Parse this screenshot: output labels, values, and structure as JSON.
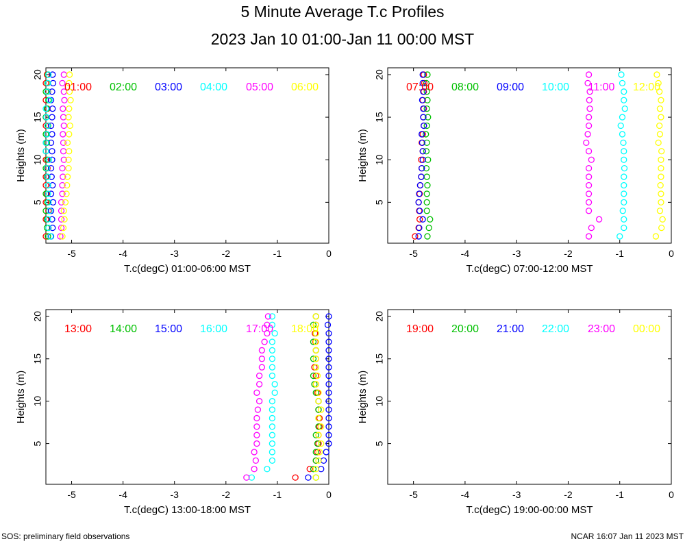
{
  "header": {
    "title": "5 Minute Average T.c Profiles",
    "subtitle": "2023 Jan 10 01:00-Jan 11 00:00 MST"
  },
  "footer": {
    "left": "SOS: preliminary field observations",
    "right": "NCAR 16:07 Jan 11 2023 MST"
  },
  "colors": [
    "#ff0000",
    "#00c000",
    "#0000ff",
    "#00ffff",
    "#ff00ff",
    "#ffff00"
  ],
  "chart_data": [
    {
      "type": "scatter",
      "xlabel": "T.c(degC) 01:00-06:00 MST",
      "ylabel": "Heights (m)",
      "xlim": [
        -5.5,
        0
      ],
      "ylim": [
        0.2,
        20.8
      ],
      "xticks": [
        "-5",
        "-4",
        "-3",
        "-2",
        "-1",
        "0"
      ],
      "yticks": [
        "5",
        "10",
        "15",
        "20"
      ],
      "series": [
        {
          "name": "01:00",
          "x": [
            -5.5,
            -5.45,
            -5.5,
            -5.45,
            -5.5,
            -5.48,
            -5.5,
            -5.5,
            -5.47,
            -5.5,
            -5.5,
            -5.5,
            -5.48,
            -5.5,
            -5.5,
            -5.47,
            -5.5,
            -5.46,
            -5.5,
            -5.48
          ]
        },
        {
          "name": "02:00",
          "x": [
            -5.46,
            -5.48,
            -5.48,
            -5.5,
            -5.47,
            -5.5,
            -5.46,
            -5.48,
            -5.5,
            -5.47,
            -5.5,
            -5.48,
            -5.5,
            -5.46,
            -5.5,
            -5.48,
            -5.45,
            -5.5,
            -5.47,
            -5.46
          ]
        },
        {
          "name": "03:00",
          "x": [
            -5.4,
            -5.37,
            -5.38,
            -5.4,
            -5.36,
            -5.4,
            -5.37,
            -5.39,
            -5.4,
            -5.38,
            -5.38,
            -5.4,
            -5.38,
            -5.4,
            -5.38,
            -5.37,
            -5.4,
            -5.38,
            -5.36,
            -5.37
          ]
        },
        {
          "name": "04:00",
          "x": [
            -5.41,
            -5.45,
            -5.46,
            -5.43,
            -5.45,
            -5.46,
            -5.46,
            -5.47,
            -5.48,
            -5.44,
            -5.5,
            -5.5,
            -5.48,
            -5.47,
            -5.49,
            -5.5,
            -5.43,
            -5.47,
            -5.46,
            -5.45
          ]
        },
        {
          "name": "05:00",
          "x": [
            -5.22,
            -5.2,
            -5.2,
            -5.2,
            -5.2,
            -5.18,
            -5.18,
            -5.17,
            -5.18,
            -5.15,
            -5.16,
            -5.16,
            -5.17,
            -5.15,
            -5.16,
            -5.17,
            -5.14,
            -5.15,
            -5.18,
            -5.15
          ]
        },
        {
          "name": "06:00",
          "x": [
            -5.18,
            -5.16,
            -5.14,
            -5.15,
            -5.12,
            -5.1,
            -5.09,
            -5.08,
            -5.06,
            -5.06,
            -5.05,
            -5.08,
            -5.05,
            -5.03,
            -5.06,
            -5.05,
            -5.02,
            -5.04,
            -5.05,
            -5.04
          ]
        }
      ]
    },
    {
      "type": "scatter",
      "xlabel": "T.c(degC) 07:00-12:00 MST",
      "ylabel": "Heights (m)",
      "xlim": [
        -5.5,
        0
      ],
      "ylim": [
        0.2,
        20.8
      ],
      "xticks": [
        "-5",
        "-4",
        "-3",
        "-2",
        "-1",
        "0"
      ],
      "yticks": [
        "5",
        "10",
        "15",
        "20"
      ],
      "series": [
        {
          "name": "07:00",
          "x": [
            -4.97,
            -4.9,
            -4.88,
            -4.89,
            -4.9,
            -4.88,
            -4.87,
            -4.85,
            -4.84,
            -4.85,
            -4.82,
            -4.84,
            -4.82,
            -4.8,
            -4.81,
            -4.8,
            -4.82,
            -4.8,
            -4.79,
            -4.8
          ]
        },
        {
          "name": "08:00",
          "x": [
            -4.73,
            -4.7,
            -4.68,
            -4.74,
            -4.74,
            -4.74,
            -4.73,
            -4.74,
            -4.75,
            -4.72,
            -4.75,
            -4.74,
            -4.76,
            -4.74,
            -4.72,
            -4.74,
            -4.73,
            -4.74,
            -4.75,
            -4.73
          ]
        },
        {
          "name": "09:00",
          "x": [
            -4.9,
            -4.89,
            -4.82,
            -4.88,
            -4.9,
            -4.89,
            -4.87,
            -4.85,
            -4.84,
            -4.82,
            -4.82,
            -4.83,
            -4.84,
            -4.8,
            -4.81,
            -4.81,
            -4.83,
            -4.81,
            -4.82,
            -4.82
          ]
        },
        {
          "name": "10:00",
          "x": [
            -1.0,
            -0.92,
            -0.92,
            -0.94,
            -0.92,
            -0.92,
            -0.92,
            -0.92,
            -0.91,
            -0.92,
            -0.92,
            -0.93,
            -0.95,
            -0.98,
            -0.95,
            -0.9,
            -0.92,
            -0.92,
            -0.95,
            -0.97
          ]
        },
        {
          "name": "11:00",
          "x": [
            -1.6,
            -1.55,
            -1.4,
            -1.6,
            -1.6,
            -1.6,
            -1.6,
            -1.6,
            -1.6,
            -1.55,
            -1.6,
            -1.65,
            -1.62,
            -1.6,
            -1.6,
            -1.58,
            -1.59,
            -1.58,
            -1.62,
            -1.6
          ]
        },
        {
          "name": "12:00",
          "x": [
            -0.3,
            -0.19,
            -0.17,
            -0.22,
            -0.2,
            -0.2,
            -0.21,
            -0.2,
            -0.2,
            -0.2,
            -0.19,
            -0.25,
            -0.22,
            -0.23,
            -0.2,
            -0.22,
            -0.2,
            -0.23,
            -0.25,
            -0.28
          ]
        }
      ]
    },
    {
      "type": "scatter",
      "xlabel": "T.c(degC) 13:00-18:00 MST",
      "ylabel": "Heights (m)",
      "xlim": [
        -5.5,
        0
      ],
      "ylim": [
        0.2,
        20.8
      ],
      "xticks": [
        "-5",
        "-4",
        "-3",
        "-2",
        "-1",
        "0"
      ],
      "yticks": [
        "5",
        "10",
        "15",
        "20"
      ],
      "series": [
        {
          "name": "13:00",
          "x": [
            -0.65,
            -0.37,
            -0.25,
            -0.22,
            -0.2,
            -0.2,
            -0.18,
            -0.18,
            -0.2,
            -0.2,
            -0.22,
            -0.25,
            -0.25,
            -0.28,
            -0.25,
            -0.25,
            -0.26,
            -0.27,
            -0.25,
            -0.25
          ]
        },
        {
          "name": "14:00",
          "x": [
            -0.25,
            -0.3,
            -0.25,
            -0.25,
            -0.22,
            -0.25,
            -0.2,
            -0.2,
            -0.2,
            -0.2,
            -0.25,
            -0.28,
            -0.3,
            -0.25,
            -0.3,
            -0.25,
            -0.3,
            -0.25,
            -0.3,
            -0.25
          ]
        },
        {
          "name": "15:00",
          "x": [
            -0.4,
            -0.15,
            -0.1,
            -0.05,
            0.0,
            0.0,
            0.0,
            0.0,
            0.0,
            0.0,
            0.0,
            0.0,
            0.0,
            0.0,
            0.0,
            0.0,
            0.0,
            0.0,
            -0.02,
            0.0
          ]
        },
        {
          "name": "16:00",
          "x": [
            -1.5,
            -1.2,
            -1.1,
            -1.1,
            -1.1,
            -1.1,
            -1.1,
            -1.1,
            -1.1,
            -1.1,
            -1.05,
            -1.05,
            -1.1,
            -1.1,
            -1.1,
            -1.1,
            -1.1,
            -1.05,
            -1.1,
            -1.1
          ]
        },
        {
          "name": "17:00",
          "x": [
            -1.6,
            -1.45,
            -1.42,
            -1.45,
            -1.4,
            -1.4,
            -1.4,
            -1.4,
            -1.38,
            -1.35,
            -1.4,
            -1.35,
            -1.35,
            -1.3,
            -1.3,
            -1.3,
            -1.25,
            -1.2,
            -1.2,
            -1.18
          ]
        },
        {
          "name": "18:00",
          "x": [
            -0.25,
            -0.25,
            -0.2,
            -0.18,
            -0.15,
            -0.2,
            -0.15,
            -0.2,
            -0.15,
            -0.2,
            -0.2,
            -0.25,
            -0.22,
            -0.25,
            -0.25,
            -0.25,
            -0.25,
            -0.25,
            -0.25,
            -0.25
          ]
        }
      ]
    },
    {
      "type": "scatter",
      "xlabel": "T.c(degC) 19:00-00:00 MST",
      "ylabel": "Heights (m)",
      "xlim": [
        -5.5,
        0
      ],
      "ylim": [
        0.2,
        20.8
      ],
      "xticks": [
        "-5",
        "-4",
        "-3",
        "-2",
        "-1",
        "0"
      ],
      "yticks": [
        "5",
        "10",
        "15",
        "20"
      ],
      "series": [
        {
          "name": "19:00",
          "x": []
        },
        {
          "name": "20:00",
          "x": []
        },
        {
          "name": "21:00",
          "x": []
        },
        {
          "name": "22:00",
          "x": []
        },
        {
          "name": "23:00",
          "x": []
        },
        {
          "name": "00:00",
          "x": []
        }
      ]
    }
  ]
}
